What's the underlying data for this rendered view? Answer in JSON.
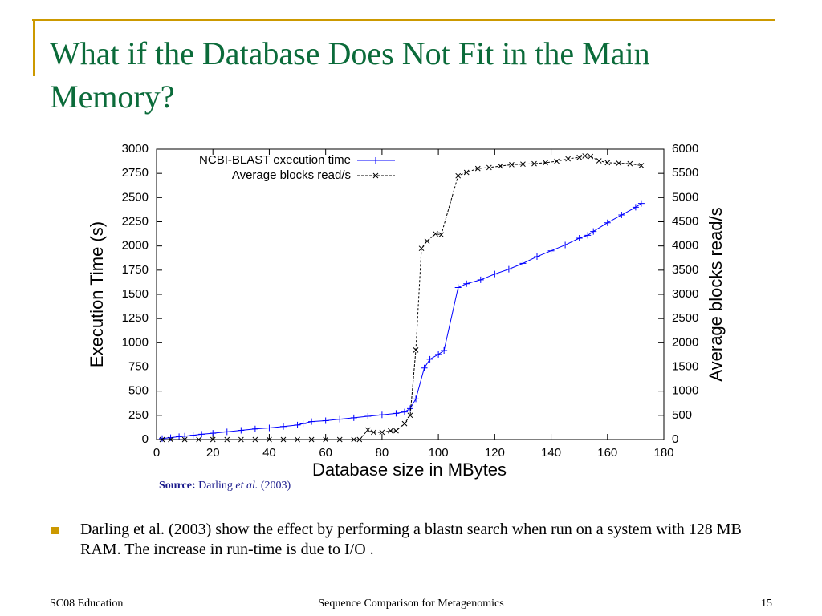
{
  "slide": {
    "title": "What if the Database Does Not Fit in the Main Memory?",
    "source": {
      "label": "Source:",
      "author": "Darling",
      "etal": "et al.",
      "year": "(2003)"
    },
    "bullet": "Darling et al. (2003) show the effect by performing a blastn search when run on a system with 128 MB RAM. The increase in run-time is due to I/O .",
    "footer_left": "SC08 Education",
    "footer_center": "Sequence Comparison for Metagenomics",
    "page_number": "15"
  },
  "chart_data": {
    "type": "line",
    "x_label": "Database size in MBytes",
    "y_label": "Execution Time (s)",
    "y2_label": "Average blocks read/s",
    "xlim": [
      0,
      180
    ],
    "xticks": [
      0,
      20,
      40,
      60,
      80,
      100,
      120,
      140,
      160,
      180
    ],
    "ylim": [
      0,
      3000
    ],
    "yticks": [
      0,
      250,
      500,
      750,
      1000,
      1250,
      1500,
      1750,
      2000,
      2250,
      2500,
      2750,
      3000
    ],
    "y2lim": [
      0,
      6000
    ],
    "y2ticks": [
      0,
      500,
      1000,
      1500,
      2000,
      2500,
      3000,
      3500,
      4000,
      4500,
      5000,
      5500,
      6000
    ],
    "legend": "upper left",
    "series": [
      {
        "name": "NCBI-BLAST execution time",
        "color": "#0000ff",
        "marker": "plus",
        "dash": false,
        "x": [
          2,
          5,
          8,
          10,
          13,
          16,
          20,
          25,
          30,
          35,
          40,
          45,
          50,
          52,
          55,
          60,
          65,
          70,
          75,
          80,
          85,
          88,
          90,
          92,
          95,
          97,
          100,
          102,
          107,
          110,
          115,
          120,
          125,
          130,
          135,
          140,
          145,
          150,
          153,
          155,
          160,
          165,
          170,
          172
        ],
        "values": [
          10,
          20,
          30,
          35,
          45,
          55,
          65,
          80,
          95,
          110,
          120,
          135,
          150,
          165,
          185,
          195,
          210,
          225,
          240,
          255,
          270,
          285,
          320,
          420,
          740,
          830,
          880,
          920,
          1570,
          1610,
          1650,
          1710,
          1760,
          1820,
          1890,
          1950,
          2010,
          2080,
          2110,
          2150,
          2240,
          2320,
          2400,
          2440
        ]
      },
      {
        "name": "Average blocks read/s",
        "color": "#000000",
        "marker": "cross",
        "dash": true,
        "axis": "y2",
        "x": [
          2,
          5,
          10,
          15,
          20,
          25,
          30,
          35,
          40,
          45,
          50,
          55,
          60,
          65,
          70,
          72,
          75,
          77,
          80,
          83,
          85,
          88,
          90,
          92,
          94,
          96,
          99,
          101,
          107,
          110,
          114,
          118,
          122,
          126,
          130,
          134,
          138,
          142,
          146,
          150,
          152,
          154,
          157,
          160,
          164,
          168,
          172
        ],
        "values": [
          0,
          0,
          0,
          0,
          0,
          0,
          0,
          0,
          0,
          0,
          0,
          0,
          0,
          0,
          0,
          0,
          200,
          150,
          150,
          180,
          180,
          330,
          500,
          1850,
          3950,
          4100,
          4250,
          4230,
          5450,
          5520,
          5600,
          5620,
          5650,
          5680,
          5690,
          5700,
          5720,
          5750,
          5800,
          5830,
          5860,
          5850,
          5760,
          5720,
          5710,
          5700,
          5660
        ]
      }
    ]
  }
}
